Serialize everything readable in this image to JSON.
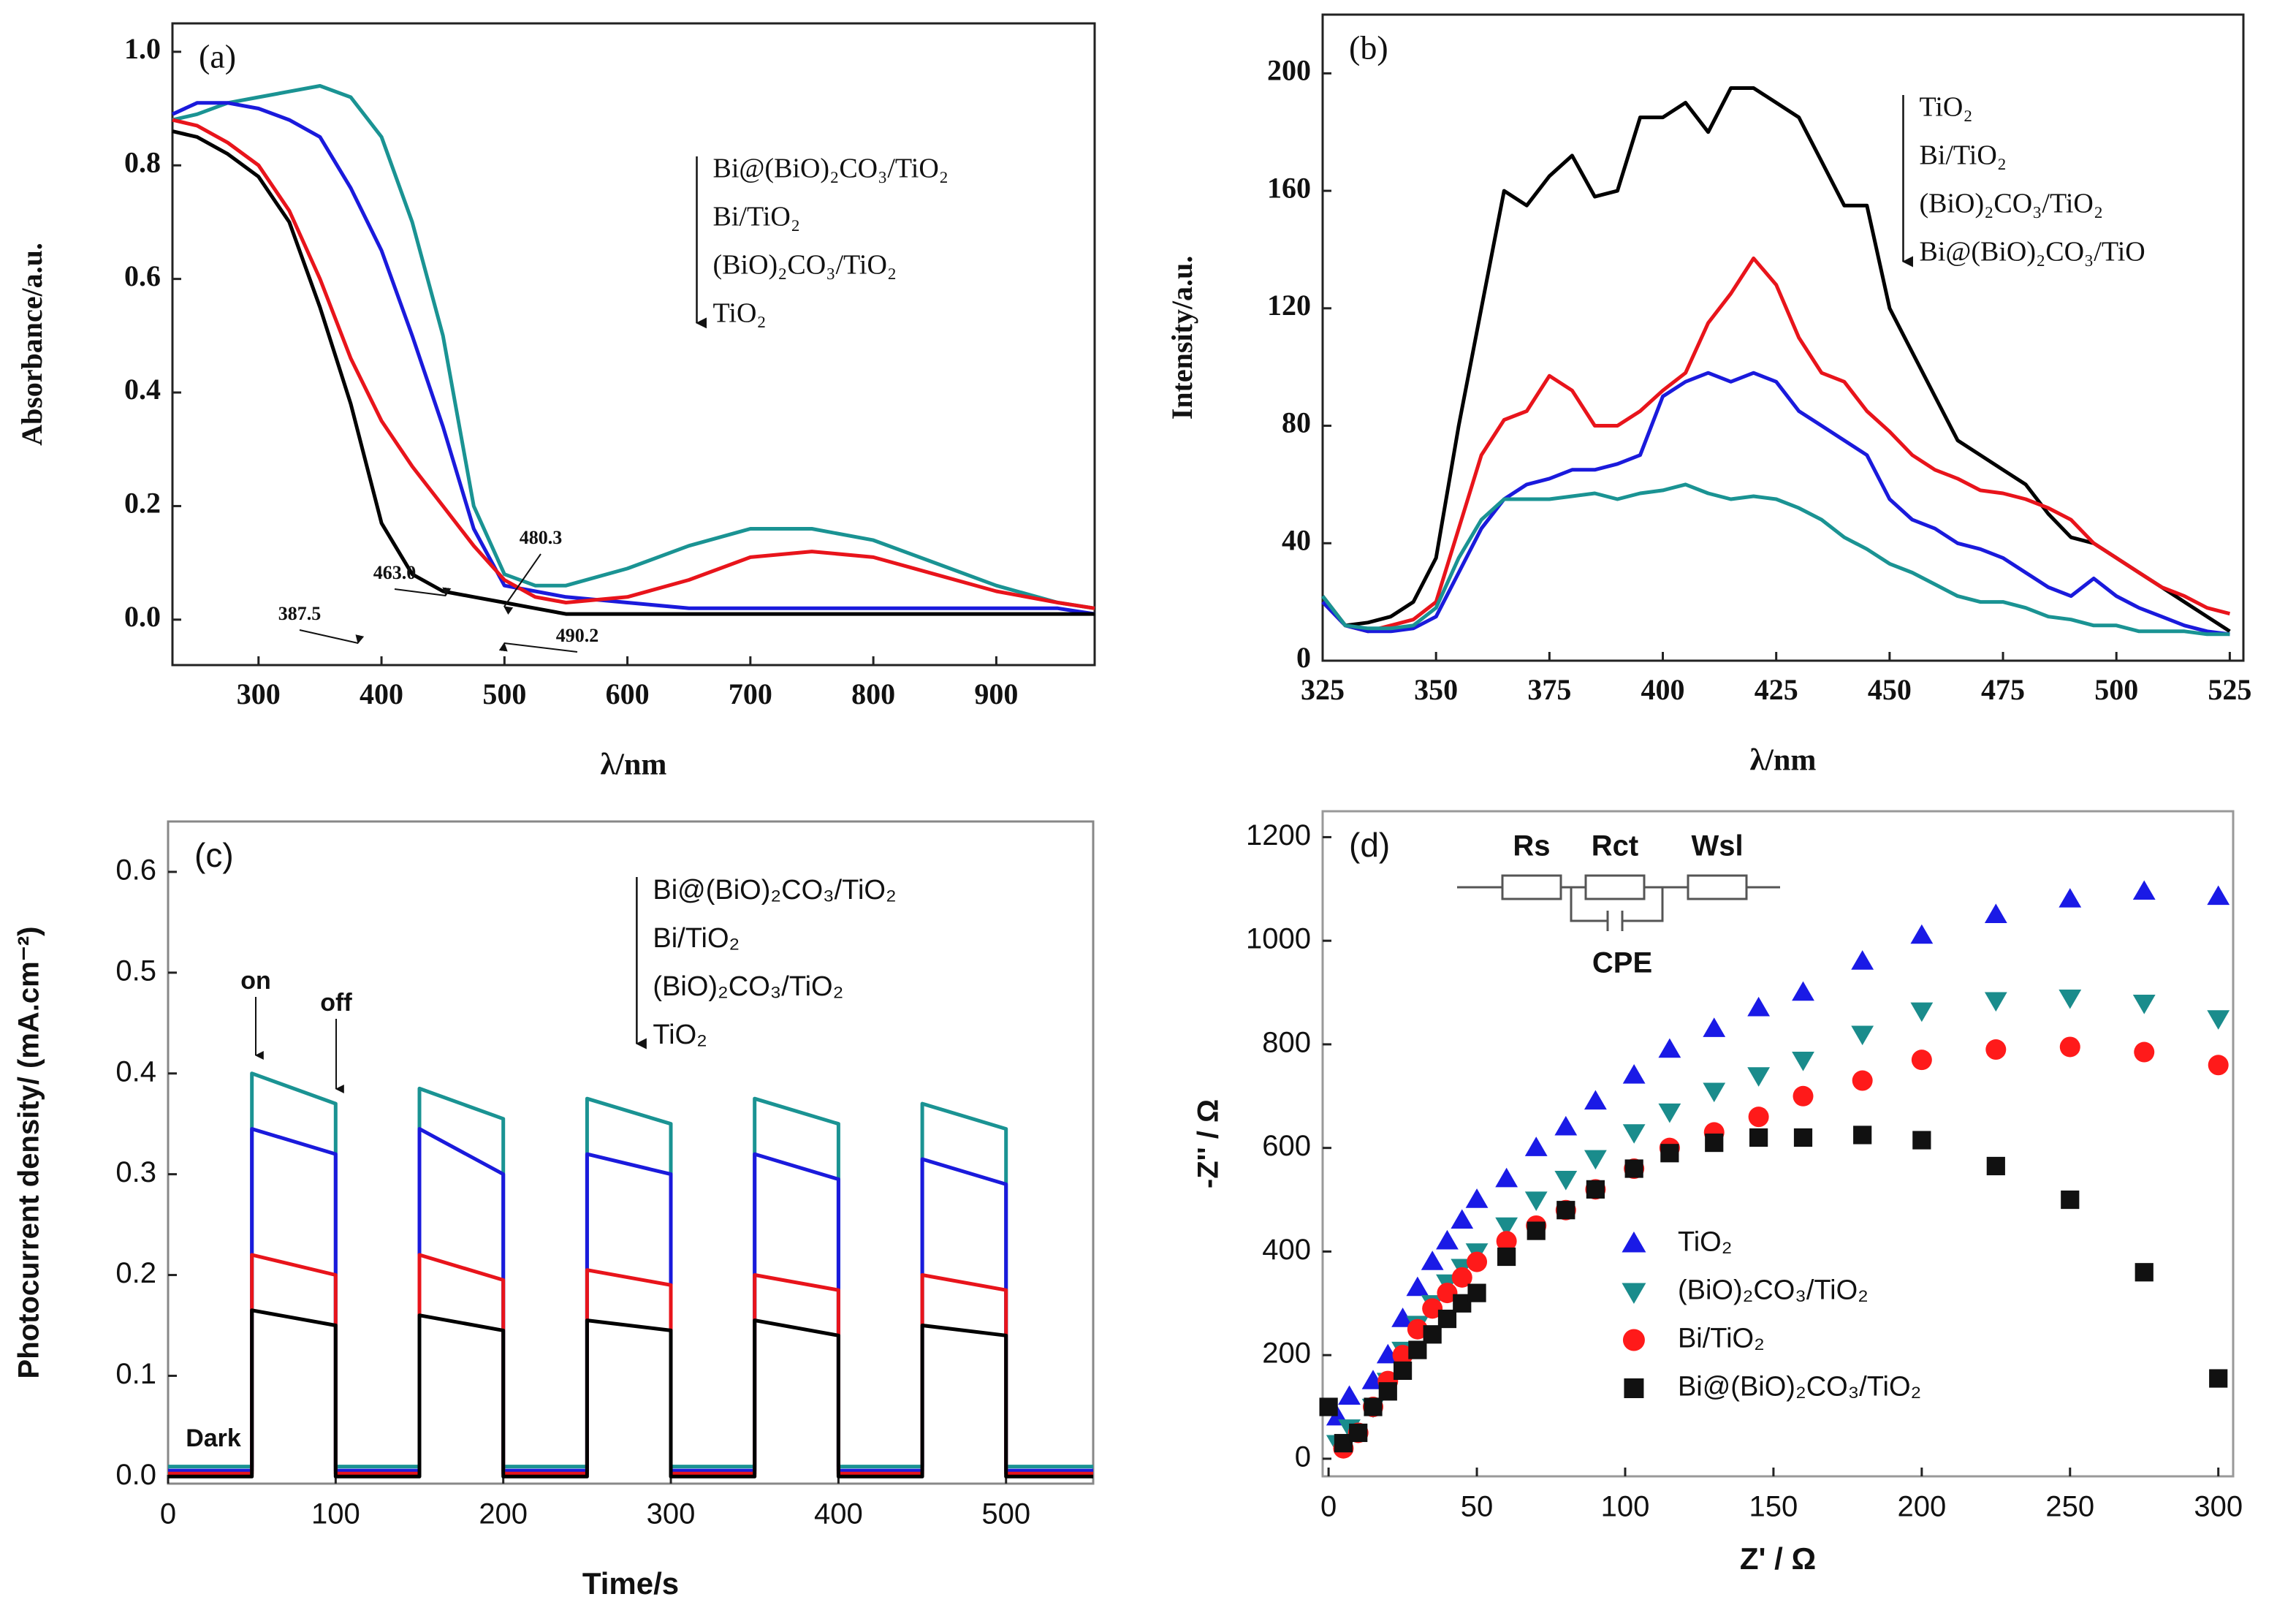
{
  "chart_data": [
    {
      "type": "line",
      "panel_label": "(a)",
      "x_label": "λ/nm",
      "y_label": "Absorbance/a.u.",
      "xlim": [
        230,
        980
      ],
      "ylim": [
        -0.08,
        1.05
      ],
      "xticks": [
        300,
        400,
        500,
        600,
        700,
        800,
        900
      ],
      "yticks": [
        {
          "value": 0,
          "label": "0.0"
        },
        0.2,
        0.4,
        0.6,
        0.8,
        {
          "value": 1,
          "label": "1.0"
        }
      ],
      "legend": "upper center",
      "annotations": [
        "387.5",
        "463.0",
        "480.3",
        "490.2"
      ],
      "x": [
        230,
        250,
        275,
        300,
        325,
        350,
        375,
        400,
        425,
        450,
        475,
        500,
        525,
        550,
        600,
        650,
        700,
        750,
        800,
        850,
        900,
        950,
        980
      ],
      "series": [
        {
          "name": "Bi@(BiO)₂CO₃/TiO₂",
          "color": "#1a9393",
          "values": [
            0.88,
            0.89,
            0.91,
            0.92,
            0.93,
            0.94,
            0.92,
            0.85,
            0.7,
            0.5,
            0.2,
            0.08,
            0.06,
            0.06,
            0.09,
            0.13,
            0.16,
            0.16,
            0.14,
            0.1,
            0.06,
            0.03,
            0.02
          ]
        },
        {
          "name": "Bi/TiO₂",
          "color": "#1a1adc",
          "values": [
            0.89,
            0.91,
            0.91,
            0.9,
            0.88,
            0.85,
            0.76,
            0.65,
            0.5,
            0.34,
            0.16,
            0.06,
            0.05,
            0.04,
            0.03,
            0.02,
            0.02,
            0.02,
            0.02,
            0.02,
            0.02,
            0.02,
            0.01
          ]
        },
        {
          "name": "(BiO)₂CO₃/TiO₂",
          "color": "#e8141b",
          "values": [
            0.88,
            0.87,
            0.84,
            0.8,
            0.72,
            0.6,
            0.46,
            0.35,
            0.27,
            0.2,
            0.13,
            0.07,
            0.04,
            0.03,
            0.04,
            0.07,
            0.11,
            0.12,
            0.11,
            0.08,
            0.05,
            0.03,
            0.02
          ]
        },
        {
          "name": "TiO₂",
          "color": "#000000",
          "values": [
            0.86,
            0.85,
            0.82,
            0.78,
            0.7,
            0.55,
            0.38,
            0.17,
            0.08,
            0.05,
            0.04,
            0.03,
            0.02,
            0.01,
            0.01,
            0.01,
            0.01,
            0.01,
            0.01,
            0.01,
            0.01,
            0.01,
            0.01
          ]
        }
      ]
    },
    {
      "type": "line",
      "panel_label": "(b)",
      "x_label": "λ/nm",
      "y_label": "Intensity/a.u.",
      "xlim": [
        325,
        528
      ],
      "ylim": [
        0,
        220
      ],
      "xticks": [
        325,
        350,
        375,
        400,
        425,
        450,
        475,
        500,
        525
      ],
      "yticks": [
        0,
        40,
        80,
        120,
        160,
        200
      ],
      "legend": "upper right",
      "x": [
        325,
        330,
        335,
        340,
        345,
        350,
        355,
        360,
        365,
        370,
        375,
        380,
        385,
        390,
        395,
        400,
        405,
        410,
        415,
        420,
        425,
        430,
        435,
        440,
        445,
        450,
        455,
        460,
        465,
        470,
        475,
        480,
        485,
        490,
        495,
        500,
        505,
        510,
        515,
        520,
        525
      ],
      "series": [
        {
          "name": "TiO₂",
          "color": "#000000",
          "values": [
            22,
            12,
            13,
            15,
            20,
            35,
            80,
            120,
            160,
            155,
            165,
            172,
            158,
            160,
            185,
            185,
            190,
            180,
            195,
            195,
            190,
            185,
            170,
            155,
            155,
            120,
            105,
            90,
            75,
            70,
            65,
            60,
            50,
            42,
            40,
            35,
            30,
            25,
            20,
            15,
            10
          ]
        },
        {
          "name": "Bi/TiO₂",
          "color": "#e8141b",
          "values": [
            20,
            12,
            10,
            12,
            14,
            20,
            45,
            70,
            82,
            85,
            97,
            92,
            80,
            80,
            85,
            92,
            98,
            115,
            125,
            137,
            128,
            110,
            98,
            95,
            85,
            78,
            70,
            65,
            62,
            58,
            57,
            55,
            52,
            48,
            40,
            35,
            30,
            25,
            22,
            18,
            16
          ]
        },
        {
          "name": "(BiO)₂CO₃/TiO₂",
          "color": "#1a1adc",
          "values": [
            20,
            12,
            10,
            10,
            11,
            15,
            30,
            45,
            55,
            60,
            62,
            65,
            65,
            67,
            70,
            90,
            95,
            98,
            95,
            98,
            95,
            85,
            80,
            75,
            70,
            55,
            48,
            45,
            40,
            38,
            35,
            30,
            25,
            22,
            28,
            22,
            18,
            15,
            12,
            10,
            9
          ]
        },
        {
          "name": "Bi@(BiO)₂CO₃/TiO",
          "color": "#1a9393",
          "values": [
            22,
            12,
            11,
            11,
            12,
            18,
            35,
            48,
            55,
            55,
            55,
            56,
            57,
            55,
            57,
            58,
            60,
            57,
            55,
            56,
            55,
            52,
            48,
            42,
            38,
            33,
            30,
            26,
            22,
            20,
            20,
            18,
            15,
            14,
            12,
            12,
            10,
            10,
            10,
            9,
            9
          ]
        }
      ]
    },
    {
      "type": "line",
      "panel_label": "(c)",
      "x_label": "Time/s",
      "y_label": "Photocurrent density/ (mA.cm⁻²)",
      "xlim": [
        0,
        552
      ],
      "ylim": [
        -0.007,
        0.65
      ],
      "xticks": [
        0,
        100,
        200,
        300,
        400,
        500
      ],
      "yticks": [
        {
          "value": 0,
          "label": "0.0"
        },
        0.1,
        0.2,
        0.3,
        0.4,
        0.5,
        0.6
      ],
      "legend": "upper center",
      "annotations": [
        "on",
        "off",
        "Dark"
      ],
      "x": [
        0,
        50,
        50,
        100,
        100,
        150,
        150,
        200,
        200,
        250,
        250,
        300,
        300,
        350,
        350,
        400,
        400,
        450,
        450,
        500,
        500,
        552
      ],
      "series": [
        {
          "name": "Bi@(BiO)₂CO₃/TiO₂",
          "color": "#1a9393",
          "values": [
            0.01,
            0.01,
            0.4,
            0.37,
            0.01,
            0.01,
            0.385,
            0.355,
            0.01,
            0.01,
            0.375,
            0.35,
            0.01,
            0.01,
            0.375,
            0.35,
            0.01,
            0.01,
            0.37,
            0.345,
            0.01,
            0.01
          ]
        },
        {
          "name": "Bi/TiO₂",
          "color": "#1a1adc",
          "values": [
            0.006,
            0.006,
            0.345,
            0.32,
            0.006,
            0.006,
            0.345,
            0.3,
            0.006,
            0.006,
            0.32,
            0.3,
            0.006,
            0.006,
            0.32,
            0.295,
            0.006,
            0.006,
            0.315,
            0.29,
            0.006,
            0.006
          ]
        },
        {
          "name": "(BiO)₂CO₃/TiO₂",
          "color": "#e8141b",
          "values": [
            0.003,
            0.003,
            0.22,
            0.2,
            0.003,
            0.003,
            0.22,
            0.195,
            0.003,
            0.003,
            0.205,
            0.19,
            0.003,
            0.003,
            0.2,
            0.185,
            0.003,
            0.003,
            0.2,
            0.185,
            0.003,
            0.003
          ]
        },
        {
          "name": "TiO₂",
          "color": "#000000",
          "values": [
            0,
            0,
            0.165,
            0.15,
            0,
            0,
            0.16,
            0.145,
            0,
            0,
            0.155,
            0.145,
            0,
            0,
            0.155,
            0.14,
            0,
            0,
            0.15,
            0.14,
            0,
            0
          ]
        }
      ]
    },
    {
      "type": "scatter",
      "panel_label": "(d)",
      "x_label": "Z' / Ω",
      "y_label": "-Z'' / Ω",
      "xlim": [
        -2,
        305
      ],
      "ylim": [
        -34,
        1250
      ],
      "xticks": [
        0,
        50,
        100,
        150,
        200,
        250,
        300
      ],
      "yticks": [
        0,
        200,
        400,
        600,
        800,
        1000,
        1200
      ],
      "legend": "lower center",
      "inset_labels": [
        "Rs",
        "Rct",
        "Wsl",
        "CPE"
      ],
      "series": [
        {
          "name": "TiO₂",
          "color": "#1a1ae6",
          "marker": "triangle-up",
          "x": [
            3,
            7,
            15,
            20,
            25,
            30,
            35,
            40,
            45,
            50,
            60,
            70,
            80,
            90,
            103,
            115,
            130,
            145,
            160,
            180,
            200,
            225,
            250,
            275,
            300
          ],
          "values": [
            80,
            120,
            150,
            200,
            270,
            330,
            380,
            420,
            460,
            500,
            540,
            600,
            640,
            690,
            740,
            790,
            830,
            870,
            900,
            960,
            1010,
            1050,
            1080,
            1095,
            1085
          ]
        },
        {
          "name": "(BiO)₂CO₃/TiO₂",
          "color": "#1a8c8c",
          "marker": "triangle-down",
          "x": [
            3,
            7,
            15,
            20,
            25,
            30,
            35,
            40,
            45,
            50,
            60,
            70,
            80,
            90,
            103,
            115,
            130,
            145,
            160,
            180,
            200,
            225,
            250,
            275,
            300
          ],
          "values": [
            30,
            60,
            100,
            150,
            210,
            260,
            300,
            340,
            370,
            400,
            450,
            500,
            540,
            580,
            630,
            670,
            710,
            740,
            770,
            820,
            865,
            885,
            890,
            880,
            850
          ]
        },
        {
          "name": "Bi/TiO₂",
          "color": "#ff1a1a",
          "marker": "circle",
          "x": [
            5,
            10,
            15,
            20,
            25,
            30,
            35,
            40,
            45,
            50,
            60,
            70,
            80,
            90,
            103,
            115,
            130,
            145,
            160,
            180,
            200,
            225,
            250,
            275,
            300
          ],
          "values": [
            20,
            50,
            100,
            150,
            200,
            250,
            290,
            320,
            350,
            380,
            420,
            450,
            480,
            520,
            560,
            600,
            630,
            660,
            700,
            730,
            770,
            790,
            795,
            785,
            760
          ]
        },
        {
          "name": "Bi@(BiO)₂CO₃/TiO₂",
          "color": "#111111",
          "marker": "square",
          "x": [
            0,
            5,
            10,
            15,
            20,
            25,
            30,
            35,
            40,
            45,
            50,
            60,
            70,
            80,
            90,
            103,
            115,
            130,
            145,
            160,
            180,
            200,
            225,
            250,
            275,
            300
          ],
          "values": [
            100,
            30,
            50,
            100,
            130,
            170,
            210,
            240,
            270,
            300,
            320,
            390,
            440,
            480,
            520,
            560,
            590,
            610,
            620,
            620,
            625,
            615,
            565,
            500,
            360,
            155
          ]
        }
      ]
    }
  ]
}
